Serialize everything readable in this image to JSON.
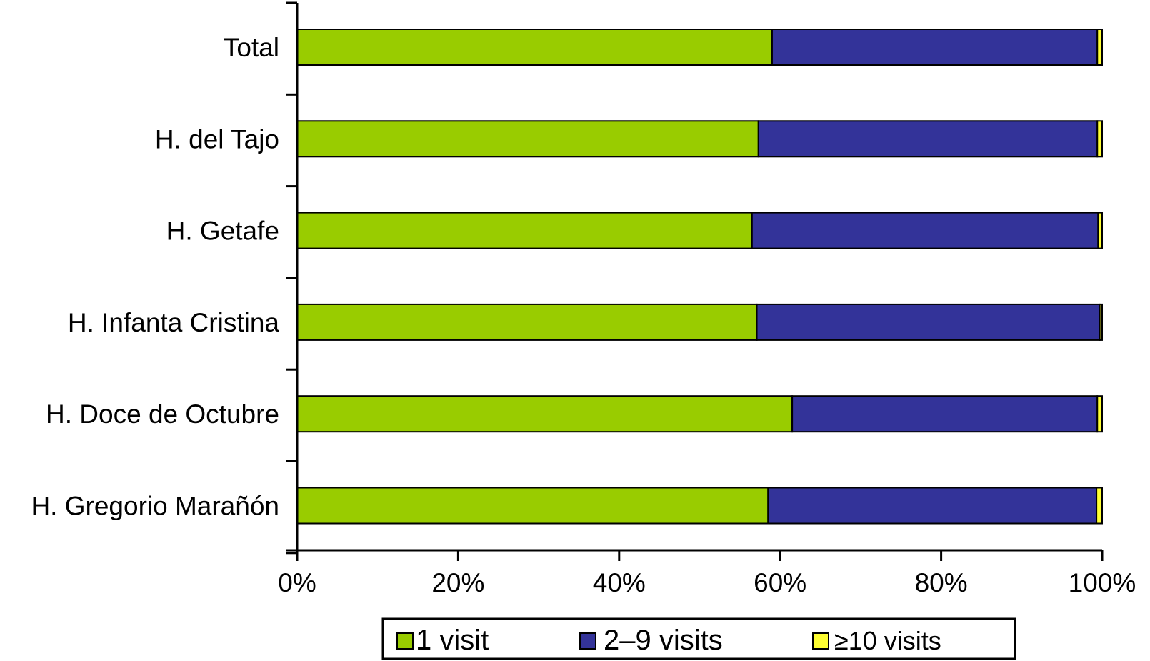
{
  "chart_data": {
    "type": "bar",
    "orientation": "horizontal",
    "stacked": "percent",
    "categories": [
      "Total",
      "H. del Tajo",
      "H. Getafe",
      "H. Infanta Cristina",
      "H. Doce de Octubre",
      "H. Gregorio Marañón"
    ],
    "series": [
      {
        "name": "1 visit",
        "color": "#99cc00",
        "values": [
          59.0,
          57.3,
          56.5,
          57.1,
          61.5,
          58.5
        ]
      },
      {
        "name": "2–9 visits",
        "color": "#333399",
        "values": [
          40.4,
          42.1,
          43.0,
          42.6,
          37.9,
          40.8
        ]
      },
      {
        "name": "≥10 visits",
        "color": "#ffff33",
        "values": [
          0.6,
          0.6,
          0.5,
          0.3,
          0.6,
          0.7
        ]
      }
    ],
    "xlim": [
      0,
      100
    ],
    "x_ticks": [
      "0%",
      "20%",
      "40%",
      "60%",
      "80%",
      "100%"
    ],
    "title": "",
    "xlabel": "",
    "ylabel": "",
    "grid": false,
    "legend_position": "bottom"
  }
}
